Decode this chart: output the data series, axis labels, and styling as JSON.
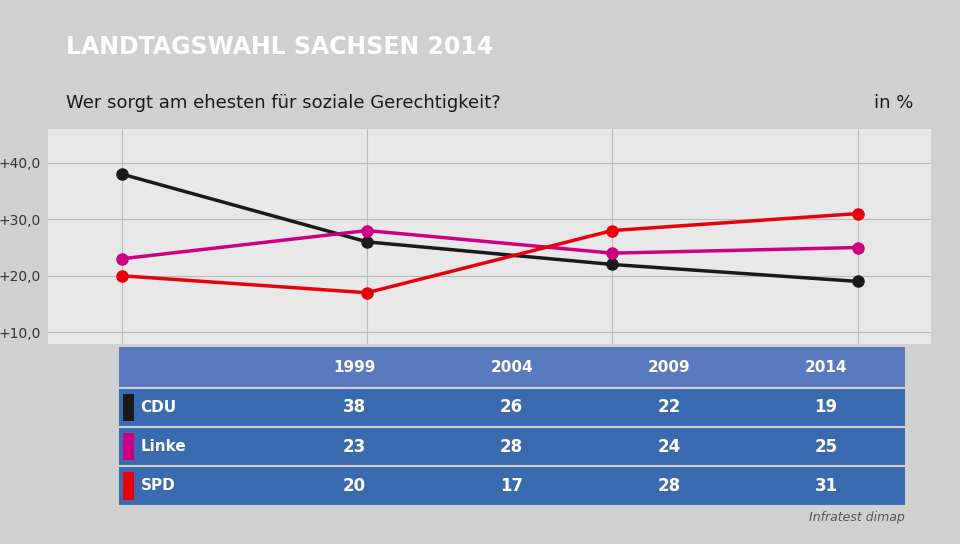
{
  "title": "LANDTAGSWAHL SACHSEN 2014",
  "subtitle": "Wer sorgt am ehesten für soziale Gerechtigkeit?",
  "subtitle_right": "in %",
  "years": [
    1999,
    2004,
    2009,
    2014
  ],
  "series": [
    {
      "name": "CDU",
      "values": [
        38,
        26,
        22,
        19
      ],
      "color": "#1a1a1a",
      "marker_color": "#1a1a1a"
    },
    {
      "name": "Linke",
      "values": [
        23,
        28,
        24,
        25
      ],
      "color": "#cc0080",
      "marker_color": "#cc0080"
    },
    {
      "name": "SPD",
      "values": [
        20,
        17,
        28,
        31
      ],
      "color": "#e8000d",
      "marker_color": "#e8000d"
    }
  ],
  "yticks": [
    10,
    20,
    30,
    40
  ],
  "ytick_labels": [
    "+10,0",
    "+20,0",
    "+30,0",
    "+40,0"
  ],
  "ylim": [
    8,
    46
  ],
  "title_bg": "#003d99",
  "title_color": "#ffffff",
  "subtitle_bg": "#f0f0f0",
  "subtitle_color": "#1a1a1a",
  "table_header_bg": "#5a7abf",
  "table_row_bg": "#3a6aaf",
  "table_text_color": "#ffffff",
  "table_label_color": "#ffffff",
  "source_text": "Infratest dimap",
  "background_color": "#d0d0d0",
  "chart_bg": "#e8e8e8",
  "linewidth": 2.5,
  "marker_size": 8
}
